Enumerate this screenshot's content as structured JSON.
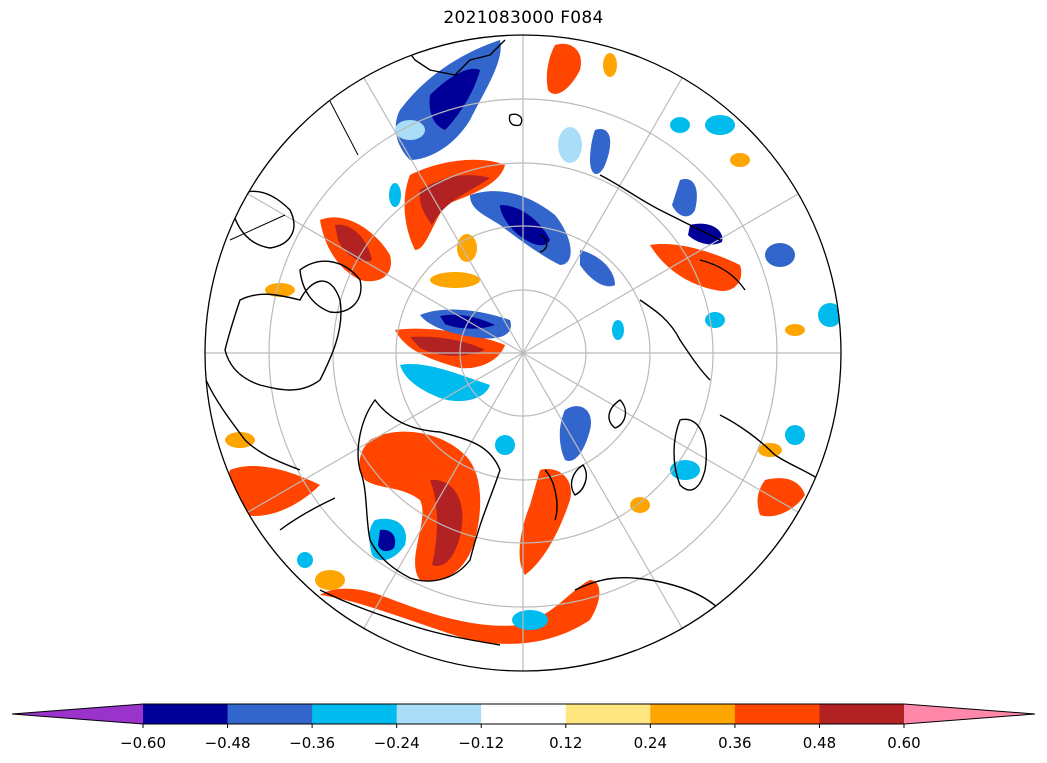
{
  "title": "2021083000 F084",
  "colorbar": {
    "colors": [
      "#9933cc",
      "#000099",
      "#3366cc",
      "#00bbee",
      "#aaddf7",
      "#ffffff",
      "#ffe680",
      "#ffa500",
      "#ff4500",
      "#b22222",
      "#ff88aa"
    ],
    "extend": "both",
    "ticks": [
      "−0.60",
      "−0.48",
      "−0.36",
      "−0.24",
      "−0.12",
      "0.12",
      "0.24",
      "0.36",
      "0.48",
      "0.60"
    ]
  },
  "map": {
    "projection": "north-polar-stereographic",
    "gridlines": true,
    "coastlines": true,
    "land_color": "#ffffff",
    "ocean_color": "#ffffff",
    "gridline_color": "#bbbbbb"
  }
}
